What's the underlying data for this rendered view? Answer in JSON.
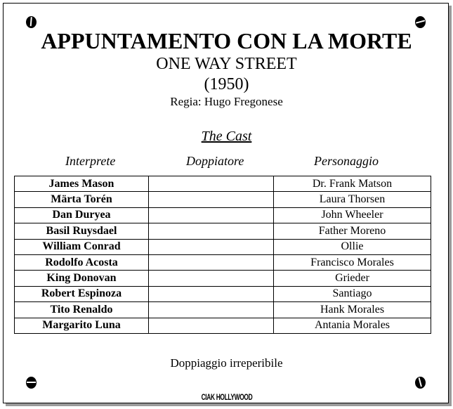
{
  "title": "APPUNTAMENTO CON LA MORTE",
  "original_title": "ONE WAY STREET",
  "year": "(1950)",
  "director": "Regia: Hugo Fregonese",
  "cast_heading": "The Cast",
  "columns": [
    "Interprete",
    "Doppiatore",
    "Personaggio"
  ],
  "cast": [
    {
      "actor": "James Mason",
      "dubber": "",
      "character": "Dr. Frank Matson"
    },
    {
      "actor": "Märta Torén",
      "dubber": "",
      "character": "Laura Thorsen"
    },
    {
      "actor": "Dan Duryea",
      "dubber": "",
      "character": "John Wheeler"
    },
    {
      "actor": "Basil Ruysdael",
      "dubber": "",
      "character": "Father Moreno"
    },
    {
      "actor": "William Conrad",
      "dubber": "",
      "character": "Ollie"
    },
    {
      "actor": "Rodolfo Acosta",
      "dubber": "",
      "character": "Francisco Morales"
    },
    {
      "actor": "King Donovan",
      "dubber": "",
      "character": "Grieder"
    },
    {
      "actor": "Robert Espinoza",
      "dubber": "",
      "character": "Santiago"
    },
    {
      "actor": "Tito Renaldo",
      "dubber": "",
      "character": "Hank Morales"
    },
    {
      "actor": "Margarito Luna",
      "dubber": "",
      "character": "Antania Morales"
    }
  ],
  "note": "Doppiaggio irreperibile",
  "logo": "CIAK HOLLYWOOD"
}
